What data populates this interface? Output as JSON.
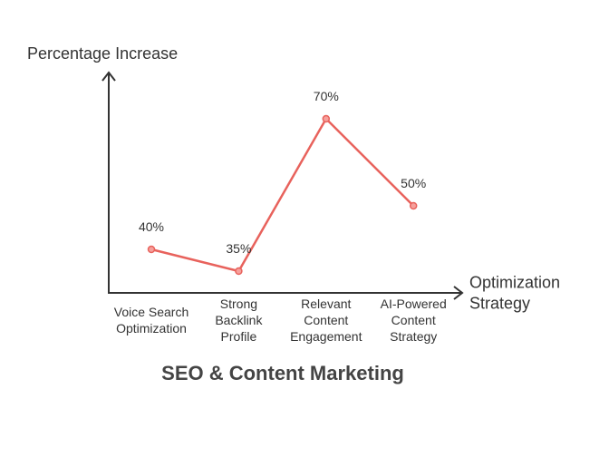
{
  "chart_data": {
    "type": "line",
    "title": "SEO & Content Marketing",
    "x_label": "Optimization\nStrategy",
    "y_label": "Percentage Increase",
    "categories": [
      "Voice Search\nOptimization",
      "Strong\nBacklink\nProfile",
      "Relevant\nContent\nEngagement",
      "AI-Powered\nContent\nStrategy"
    ],
    "series": [
      {
        "color": "#e8625c",
        "values": [
          40,
          35,
          70,
          50
        ],
        "value_labels": [
          "40%",
          "35%",
          "70%",
          "50%"
        ]
      }
    ],
    "ylim": [
      30,
      80
    ]
  }
}
